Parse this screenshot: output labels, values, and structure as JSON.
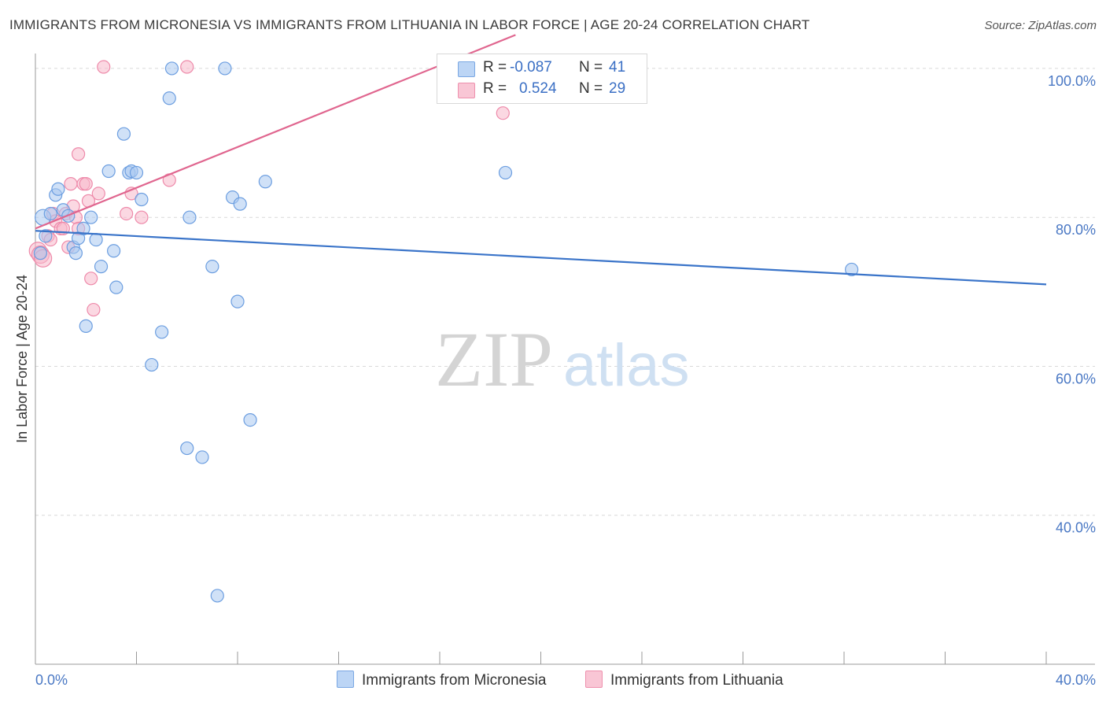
{
  "header": {
    "title": "IMMIGRANTS FROM MICRONESIA VS IMMIGRANTS FROM LITHUANIA IN LABOR FORCE | AGE 20-24 CORRELATION CHART",
    "source": "Source: ZipAtlas.com"
  },
  "watermark": {
    "zip": "ZIP",
    "atlas": "atlas"
  },
  "legend_top": {
    "rows": [
      {
        "r_label": "R =",
        "r_value": "-0.087",
        "n_label": "N =",
        "n_value": "41"
      },
      {
        "r_label": "R =",
        "r_value": "0.524",
        "n_label": "N =",
        "n_value": "29"
      }
    ]
  },
  "legend_bottom": {
    "series_1": "Immigrants from Micronesia",
    "series_2": "Immigrants from Lithuania"
  },
  "colors": {
    "micronesia_fill": "#a9c8f0",
    "micronesia_stroke": "#6c9ee0",
    "micronesia_line": "#3a74c9",
    "lithuania_fill": "#f7b8cb",
    "lithuania_stroke": "#ee8aaa",
    "lithuania_line": "#e0668f",
    "tick_blue": "#4a78c4",
    "grid": "#d9d9d9"
  },
  "chart_data": {
    "type": "scatter",
    "title": "IMMIGRANTS FROM MICRONESIA VS IMMIGRANTS FROM LITHUANIA IN LABOR FORCE | AGE 20-24 CORRELATION CHART",
    "ylabel": "In Labor Force | Age 20-24",
    "xlabel": "",
    "xlim": [
      0,
      40
    ],
    "ylim": [
      20,
      102
    ],
    "x_ticks": [
      "0.0%",
      "40.0%"
    ],
    "y_ticks": [
      {
        "value": 100,
        "label": "100.0%"
      },
      {
        "value": 80,
        "label": "80.0%"
      },
      {
        "value": 60,
        "label": "60.0%"
      },
      {
        "value": 40,
        "label": "40.0%"
      }
    ],
    "grid": true,
    "legend_position": "top-center",
    "series": [
      {
        "name": "Immigrants from Micronesia",
        "R": -0.087,
        "N": 41,
        "trend": {
          "x": [
            0,
            40
          ],
          "y": [
            78.2,
            71.0
          ]
        },
        "points": [
          [
            0.3,
            80
          ],
          [
            0.4,
            77.5
          ],
          [
            0.2,
            75.2
          ],
          [
            0.6,
            80.5
          ],
          [
            0.8,
            83
          ],
          [
            0.9,
            83.8
          ],
          [
            1.1,
            81
          ],
          [
            1.3,
            80.2
          ],
          [
            1.5,
            76
          ],
          [
            1.6,
            75.2
          ],
          [
            1.7,
            77.2
          ],
          [
            1.9,
            78.5
          ],
          [
            2.2,
            80
          ],
          [
            2.4,
            77
          ],
          [
            2.6,
            73.4
          ],
          [
            2.9,
            86.2
          ],
          [
            3.1,
            75.5
          ],
          [
            3.2,
            70.6
          ],
          [
            3.5,
            91.2
          ],
          [
            3.7,
            86
          ],
          [
            3.8,
            86.2
          ],
          [
            4.0,
            86
          ],
          [
            4.2,
            82.4
          ],
          [
            2.0,
            65.4
          ],
          [
            4.6,
            60.2
          ],
          [
            5.0,
            64.6
          ],
          [
            5.3,
            96
          ],
          [
            5.4,
            100
          ],
          [
            6.0,
            49
          ],
          [
            6.1,
            80
          ],
          [
            6.6,
            47.8
          ],
          [
            7.0,
            73.4
          ],
          [
            7.5,
            100
          ],
          [
            7.8,
            82.7
          ],
          [
            8.0,
            68.7
          ],
          [
            8.1,
            81.8
          ],
          [
            8.5,
            52.8
          ],
          [
            9.1,
            84.8
          ],
          [
            7.2,
            29.2
          ],
          [
            18.6,
            86
          ],
          [
            32.3,
            73
          ]
        ]
      },
      {
        "name": "Immigrants from Lithuania",
        "R": 0.524,
        "N": 29,
        "trend": {
          "x": [
            0,
            19
          ],
          "y": [
            78.5,
            104.5
          ]
        },
        "points": [
          [
            0.1,
            75.5
          ],
          [
            0.2,
            75
          ],
          [
            0.3,
            74.5
          ],
          [
            0.5,
            77.5
          ],
          [
            0.6,
            77
          ],
          [
            0.7,
            80.5
          ],
          [
            0.8,
            79.5
          ],
          [
            1.0,
            78.5
          ],
          [
            1.1,
            78.5
          ],
          [
            1.2,
            80.5
          ],
          [
            1.3,
            76
          ],
          [
            1.4,
            84.5
          ],
          [
            1.5,
            81.5
          ],
          [
            1.6,
            80
          ],
          [
            1.7,
            78.5
          ],
          [
            1.7,
            88.5
          ],
          [
            1.9,
            84.5
          ],
          [
            2.0,
            84.5
          ],
          [
            2.1,
            82.2
          ],
          [
            2.2,
            71.8
          ],
          [
            2.3,
            67.6
          ],
          [
            2.5,
            83.2
          ],
          [
            2.7,
            100.2
          ],
          [
            3.6,
            80.5
          ],
          [
            3.8,
            83.2
          ],
          [
            4.2,
            80
          ],
          [
            5.3,
            85
          ],
          [
            6.0,
            100.2
          ],
          [
            18.5,
            94
          ]
        ]
      }
    ]
  }
}
